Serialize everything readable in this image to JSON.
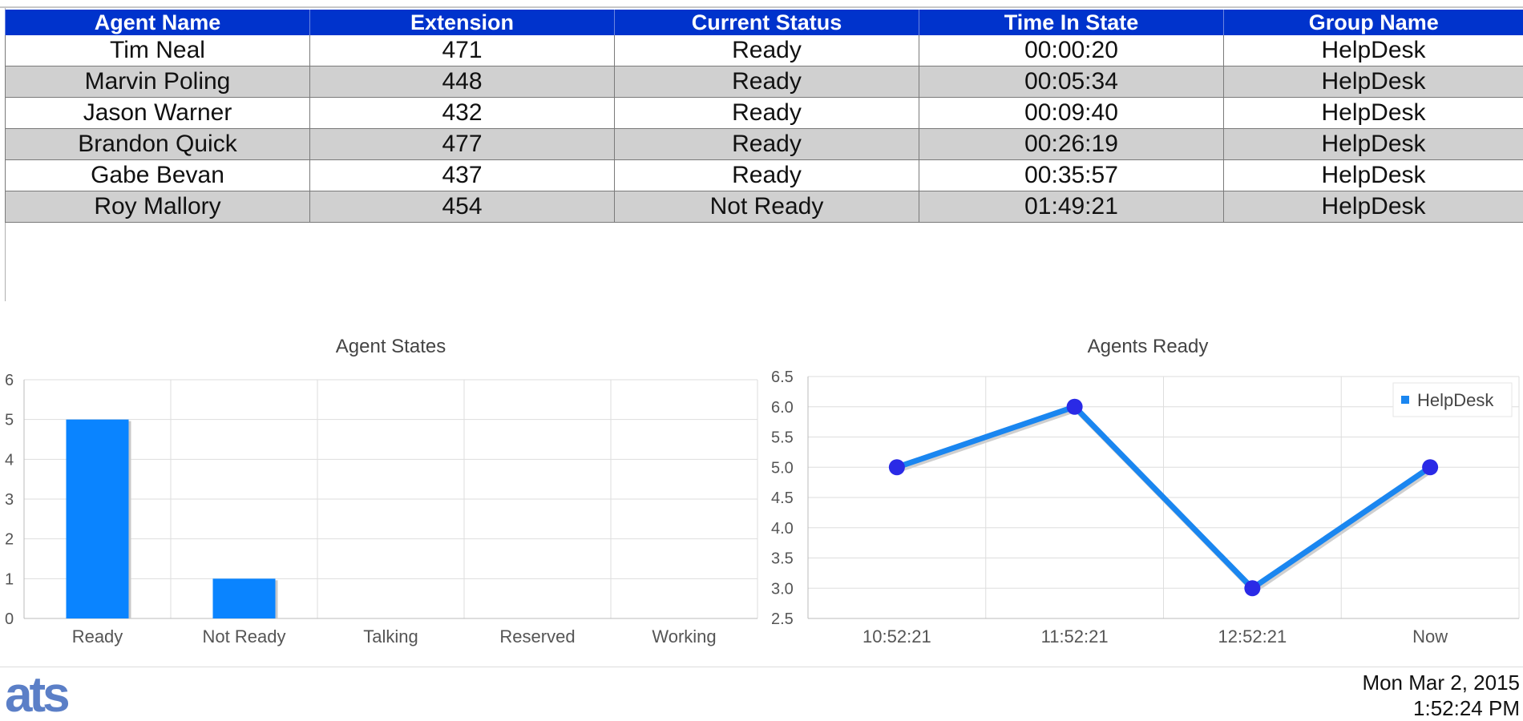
{
  "table": {
    "headers": [
      "Agent Name",
      "Extension",
      "Current Status",
      "Time In State",
      "Group Name"
    ],
    "rows": [
      [
        "Tim Neal",
        "471",
        "Ready",
        "00:00:20",
        "HelpDesk"
      ],
      [
        "Marvin Poling",
        "448",
        "Ready",
        "00:05:34",
        "HelpDesk"
      ],
      [
        "Jason Warner",
        "432",
        "Ready",
        "00:09:40",
        "HelpDesk"
      ],
      [
        "Brandon Quick",
        "477",
        "Ready",
        "00:26:19",
        "HelpDesk"
      ],
      [
        "Gabe Bevan",
        "437",
        "Ready",
        "00:35:57",
        "HelpDesk"
      ],
      [
        "Roy Mallory",
        "454",
        "Not Ready",
        "01:49:21",
        "HelpDesk"
      ]
    ]
  },
  "chart_data": [
    {
      "type": "bar",
      "title": "Agent States",
      "categories": [
        "Ready",
        "Not Ready",
        "Talking",
        "Reserved",
        "Working"
      ],
      "values": [
        5,
        1,
        0,
        0,
        0
      ],
      "ylim": [
        0,
        6
      ],
      "yticks": [
        "0",
        "1",
        "2",
        "3",
        "4",
        "5",
        "6"
      ],
      "grid": true,
      "color": "#0a84ff"
    },
    {
      "type": "line",
      "title": "Agents Ready",
      "categories": [
        "10:52:21",
        "11:52:21",
        "12:52:21",
        "Now"
      ],
      "series": [
        {
          "name": "HelpDesk",
          "values": [
            5,
            6,
            3,
            5
          ]
        }
      ],
      "ylim": [
        2.5,
        6.5
      ],
      "yticks": [
        "2.5",
        "3.0",
        "3.5",
        "4.0",
        "4.5",
        "5.0",
        "5.5",
        "6.0",
        "6.5"
      ],
      "grid": true,
      "legend": "top-right",
      "line_color": "#1a86f0",
      "marker_color": "#2a2ae6"
    }
  ],
  "footer": {
    "logo": "ats",
    "date": "Mon Mar 2, 2015",
    "time": "1:52:24 PM"
  }
}
